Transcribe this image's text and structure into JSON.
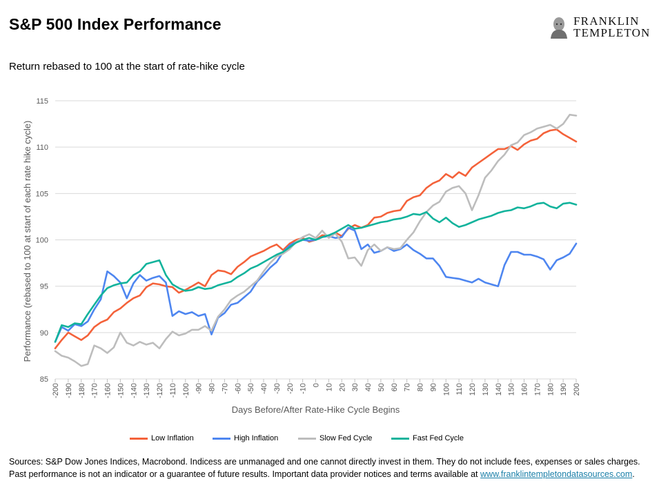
{
  "header": {
    "title": "S&P 500 Index Performance",
    "subtitle": "Return rebased to 100 at the start of rate-hike cycle"
  },
  "logo": {
    "line1": "FRANKLIN",
    "line2": "TEMPLETON",
    "icon": "franklin-portrait-icon"
  },
  "chart_data": {
    "type": "line",
    "title": "",
    "xlabel": "Days Before/After Rate-Hike Cycle Begins",
    "ylabel": "Performance (rebased to 100 at start of each rate hike cycle)",
    "xlim": [
      -200,
      200
    ],
    "ylim": [
      85,
      115
    ],
    "xticks": [
      -200,
      -190,
      -180,
      -170,
      -160,
      -150,
      -140,
      -130,
      -120,
      -110,
      -100,
      -90,
      -80,
      -70,
      -60,
      -50,
      -40,
      -30,
      -20,
      -10,
      0,
      10,
      20,
      30,
      40,
      50,
      60,
      70,
      80,
      90,
      100,
      110,
      120,
      130,
      140,
      150,
      160,
      170,
      180,
      190,
      200
    ],
    "yticks": [
      85,
      90,
      95,
      100,
      105,
      110,
      115
    ],
    "grid": true,
    "legend_position": "bottom",
    "series": [
      {
        "name": "Low Inflation",
        "color": "#f4623a",
        "x": [
          -200,
          -195,
          -190,
          -185,
          -180,
          -175,
          -170,
          -165,
          -160,
          -155,
          -150,
          -145,
          -140,
          -135,
          -130,
          -125,
          -120,
          -115,
          -110,
          -105,
          -100,
          -95,
          -90,
          -85,
          -80,
          -75,
          -70,
          -65,
          -60,
          -55,
          -50,
          -45,
          -40,
          -35,
          -30,
          -25,
          -20,
          -15,
          -10,
          -5,
          0,
          5,
          10,
          15,
          20,
          25,
          30,
          35,
          40,
          45,
          50,
          55,
          60,
          65,
          70,
          75,
          80,
          85,
          90,
          95,
          100,
          105,
          110,
          115,
          120,
          125,
          130,
          135,
          140,
          145,
          150,
          155,
          160,
          165,
          170,
          175,
          180,
          185,
          190,
          195,
          200
        ],
        "values": [
          88.3,
          89.2,
          90.0,
          89.6,
          89.2,
          89.7,
          90.6,
          91.1,
          91.4,
          92.2,
          92.6,
          93.2,
          93.7,
          94.0,
          94.9,
          95.3,
          95.2,
          95.0,
          94.9,
          94.3,
          94.6,
          95.0,
          95.4,
          95.0,
          96.2,
          96.7,
          96.6,
          96.3,
          97.1,
          97.6,
          98.2,
          98.5,
          98.8,
          99.2,
          99.5,
          98.9,
          99.6,
          100.0,
          100.2,
          99.8,
          100.0,
          100.5,
          100.4,
          100.8,
          100.4,
          101.2,
          101.6,
          101.3,
          101.6,
          102.4,
          102.5,
          102.9,
          103.1,
          103.2,
          104.2,
          104.6,
          104.8,
          105.6,
          106.1,
          106.4,
          107.1,
          106.7,
          107.3,
          106.9,
          107.8,
          108.3,
          108.8,
          109.3,
          109.8,
          109.8,
          110.1,
          109.7,
          110.3,
          110.7,
          110.9,
          111.5,
          111.8,
          111.9,
          111.4,
          111.0,
          110.6
        ]
      },
      {
        "name": "High Inflation",
        "color": "#4e86f0",
        "x": [
          -200,
          -195,
          -190,
          -185,
          -180,
          -175,
          -170,
          -165,
          -160,
          -155,
          -150,
          -145,
          -140,
          -135,
          -130,
          -125,
          -120,
          -115,
          -110,
          -105,
          -100,
          -95,
          -90,
          -85,
          -80,
          -75,
          -70,
          -65,
          -60,
          -55,
          -50,
          -45,
          -40,
          -35,
          -30,
          -25,
          -20,
          -15,
          -10,
          -5,
          0,
          5,
          10,
          15,
          20,
          25,
          30,
          35,
          40,
          45,
          50,
          55,
          60,
          65,
          70,
          75,
          80,
          85,
          90,
          95,
          100,
          105,
          110,
          115,
          120,
          125,
          130,
          135,
          140,
          145,
          150,
          155,
          160,
          165,
          170,
          175,
          180,
          185,
          190,
          195,
          200
        ],
        "values": [
          89.0,
          90.6,
          90.2,
          90.9,
          90.7,
          91.2,
          92.5,
          93.6,
          96.6,
          96.1,
          95.4,
          93.7,
          95.3,
          96.2,
          95.6,
          95.9,
          96.1,
          95.4,
          91.8,
          92.3,
          92.0,
          92.2,
          91.8,
          92.0,
          89.8,
          91.6,
          92.1,
          93.0,
          93.2,
          93.8,
          94.4,
          95.5,
          96.2,
          97.0,
          97.6,
          98.7,
          99.4,
          99.8,
          100.0,
          99.9,
          100.0,
          100.3,
          100.4,
          100.2,
          100.3,
          101.3,
          101.0,
          99.0,
          99.5,
          98.6,
          98.8,
          99.2,
          98.8,
          99.0,
          99.5,
          98.9,
          98.5,
          98.0,
          98.0,
          97.2,
          96.0,
          95.9,
          95.8,
          95.6,
          95.4,
          95.8,
          95.4,
          95.2,
          95.0,
          97.3,
          98.7,
          98.7,
          98.4,
          98.4,
          98.2,
          97.9,
          96.8,
          97.8,
          98.1,
          98.5,
          99.6
        ]
      },
      {
        "name": "Slow Fed Cycle",
        "color": "#bdbdbd",
        "x": [
          -200,
          -195,
          -190,
          -185,
          -180,
          -175,
          -170,
          -165,
          -160,
          -155,
          -150,
          -145,
          -140,
          -135,
          -130,
          -125,
          -120,
          -115,
          -110,
          -105,
          -100,
          -95,
          -90,
          -85,
          -80,
          -75,
          -70,
          -65,
          -60,
          -55,
          -50,
          -45,
          -40,
          -35,
          -30,
          -25,
          -20,
          -15,
          -10,
          -5,
          0,
          5,
          10,
          15,
          20,
          25,
          30,
          35,
          40,
          45,
          50,
          55,
          60,
          65,
          70,
          75,
          80,
          85,
          90,
          95,
          100,
          105,
          110,
          115,
          120,
          125,
          130,
          135,
          140,
          145,
          150,
          155,
          160,
          165,
          170,
          175,
          180,
          185,
          190,
          195,
          200
        ],
        "values": [
          88.0,
          87.5,
          87.3,
          86.9,
          86.4,
          86.6,
          88.6,
          88.3,
          87.8,
          88.4,
          90.0,
          88.9,
          88.6,
          89.0,
          88.7,
          88.9,
          88.3,
          89.3,
          90.1,
          89.7,
          89.9,
          90.3,
          90.3,
          90.7,
          90.2,
          91.7,
          92.5,
          93.5,
          94.0,
          94.4,
          95.0,
          95.6,
          96.6,
          97.5,
          98.2,
          98.5,
          99.0,
          99.8,
          100.3,
          100.6,
          100.2,
          101.0,
          100.2,
          100.7,
          99.8,
          98.0,
          98.1,
          97.2,
          98.9,
          99.5,
          98.8,
          99.2,
          99.0,
          99.1,
          100.0,
          100.8,
          102.0,
          103.0,
          103.7,
          104.1,
          105.2,
          105.6,
          105.8,
          105.0,
          103.2,
          104.8,
          106.7,
          107.5,
          108.5,
          109.2,
          110.2,
          110.5,
          111.3,
          111.6,
          112.0,
          112.2,
          112.4,
          112.0,
          112.5,
          113.5,
          113.4
        ]
      },
      {
        "name": "Fast Fed Cycle",
        "color": "#12b39c",
        "x": [
          -200,
          -195,
          -190,
          -185,
          -180,
          -175,
          -170,
          -165,
          -160,
          -155,
          -150,
          -145,
          -140,
          -135,
          -130,
          -125,
          -120,
          -115,
          -110,
          -105,
          -100,
          -95,
          -90,
          -85,
          -80,
          -75,
          -70,
          -65,
          -60,
          -55,
          -50,
          -45,
          -40,
          -35,
          -30,
          -25,
          -20,
          -15,
          -10,
          -5,
          0,
          5,
          10,
          15,
          20,
          25,
          30,
          35,
          40,
          45,
          50,
          55,
          60,
          65,
          70,
          75,
          80,
          85,
          90,
          95,
          100,
          105,
          110,
          115,
          120,
          125,
          130,
          135,
          140,
          145,
          150,
          155,
          160,
          165,
          170,
          175,
          180,
          185,
          190,
          195,
          200
        ],
        "values": [
          89.0,
          90.8,
          90.6,
          91.0,
          90.9,
          92.0,
          93.0,
          94.0,
          94.8,
          95.1,
          95.3,
          95.4,
          96.2,
          96.6,
          97.4,
          97.6,
          97.8,
          96.2,
          95.2,
          94.8,
          94.5,
          94.6,
          94.9,
          94.7,
          94.8,
          95.1,
          95.3,
          95.5,
          96.0,
          96.4,
          96.9,
          97.2,
          97.6,
          98.0,
          98.4,
          98.7,
          99.2,
          99.7,
          100.0,
          100.2,
          100.0,
          100.3,
          100.5,
          100.8,
          101.2,
          101.6,
          101.2,
          101.3,
          101.5,
          101.7,
          101.9,
          102.0,
          102.2,
          102.3,
          102.5,
          102.8,
          102.7,
          103.0,
          102.3,
          101.9,
          102.4,
          101.8,
          101.4,
          101.6,
          101.9,
          102.2,
          102.4,
          102.6,
          102.9,
          103.1,
          103.2,
          103.5,
          103.4,
          103.6,
          103.9,
          104.0,
          103.6,
          103.4,
          103.9,
          104.0,
          103.8
        ]
      }
    ]
  },
  "footer": {
    "line1": "Sources: S&P Dow Jones Indices, Macrobond. Indicess are unmanaged and one cannot directly invest in them. They do not include fees, expenses or sales charges.",
    "line2": "Past performance is not an indicator or a guarantee of future results. Important data provider notices and terms available at",
    "link": "www.franklintempletondatasources.com",
    "tail": "."
  }
}
